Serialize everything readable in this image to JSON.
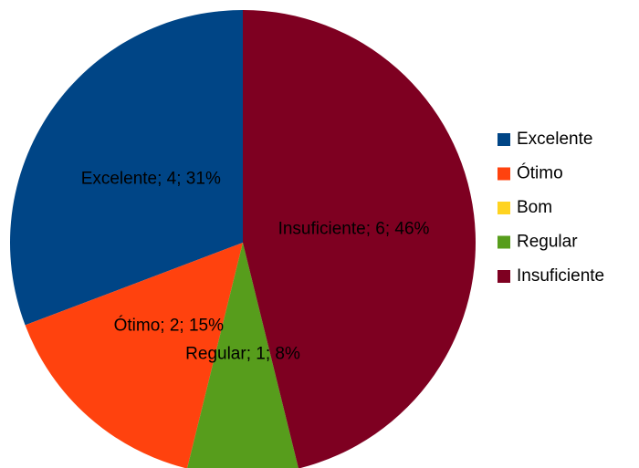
{
  "chart_data": {
    "type": "pie",
    "categories": [
      "Excelente",
      "Ótimo",
      "Bom",
      "Regular",
      "Insuficiente"
    ],
    "values": [
      4,
      2,
      0,
      1,
      6
    ],
    "value_labels": [
      "Excelente; 4; 31%",
      "Ótimo; 2; 15%",
      null,
      "Regular; 1; 8%",
      "Insuficiente; 6; 46%"
    ],
    "colors": [
      "#004586",
      "#ff420e",
      "#ffd320",
      "#579d1c",
      "#7e0021"
    ],
    "legend": "right"
  }
}
